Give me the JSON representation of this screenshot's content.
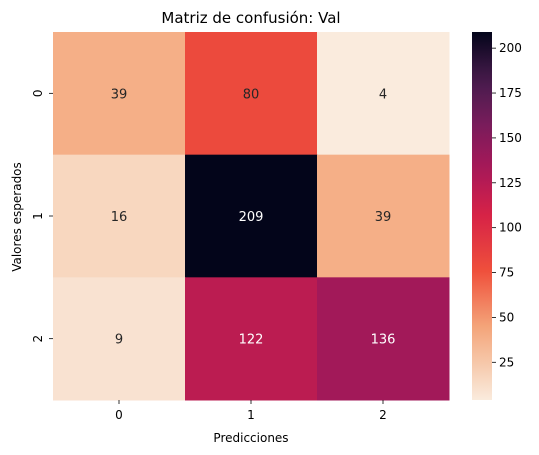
{
  "chart_data": {
    "type": "heatmap",
    "title": "Matriz de confusión: Val",
    "xlabel": "Predicciones",
    "ylabel": "Valores esperados",
    "x_categories": [
      "0",
      "1",
      "2"
    ],
    "y_categories": [
      "0",
      "1",
      "2"
    ],
    "values": [
      [
        39,
        80,
        4
      ],
      [
        16,
        209,
        39
      ],
      [
        9,
        122,
        136
      ]
    ],
    "colorbar": {
      "min": 4,
      "max": 209,
      "ticks": [
        "25",
        "50",
        "75",
        "100",
        "125",
        "150",
        "175",
        "200"
      ],
      "colormap": "rocket_r"
    },
    "grid": false
  }
}
